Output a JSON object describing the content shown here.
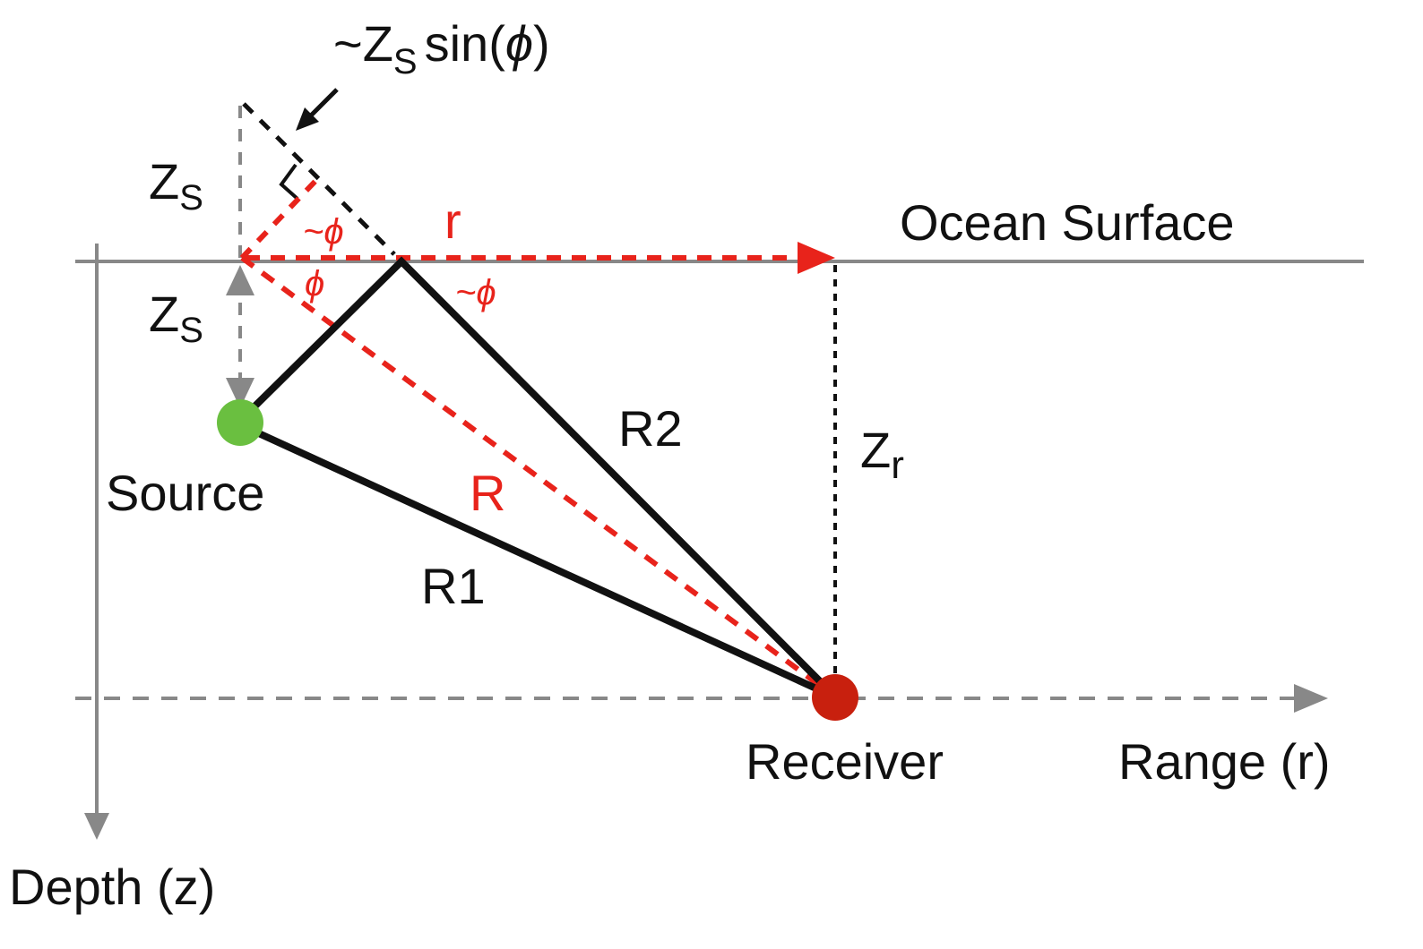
{
  "labels": {
    "zs_sin_main": "~Z",
    "zs_sin_sub": "S",
    "zs_sin_fn": "sin(",
    "zs_sin_phi": "ϕ",
    "zs_sin_close": ")",
    "zs_upper_main": "Z",
    "zs_upper_sub": "S",
    "zs_lower_main": "Z",
    "zs_lower_sub": "S",
    "zr_main": "Z",
    "zr_sub": "r",
    "approx_phi_upper": "~ϕ",
    "phi": "ϕ",
    "approx_phi_right": "~ϕ",
    "r": "r",
    "ocean_surface": "Ocean Surface",
    "r2": "R2",
    "r_total": "R",
    "r1": "R1",
    "source": "Source",
    "receiver": "Receiver",
    "range_axis": "Range (r)",
    "depth_axis": "Depth (z)"
  },
  "colors": {
    "black": "#111111",
    "gray": "#888888",
    "red": "#e8231b",
    "source": "#6abf40",
    "receiver": "#c8200e"
  }
}
